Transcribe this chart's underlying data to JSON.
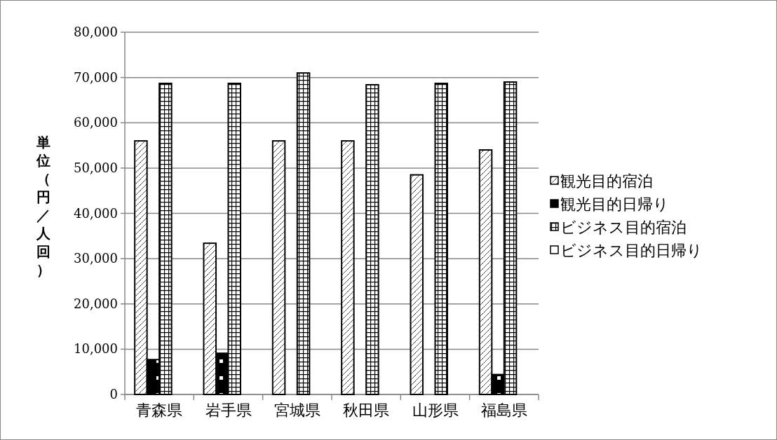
{
  "chart_data": {
    "type": "bar",
    "ylabel": "単位（円／人回）",
    "categories": [
      "青森県",
      "岩手県",
      "宮城県",
      "秋田県",
      "山形県",
      "福島県"
    ],
    "series": [
      {
        "name": "観光目的宿泊",
        "color": "#000000",
        "values": [
          56000,
          33400,
          56000,
          56000,
          48500,
          54000
        ]
      },
      {
        "name": "観光目的日帰り",
        "color": "#000000",
        "values": [
          7700,
          9100,
          null,
          null,
          null,
          4400
        ]
      },
      {
        "name": "ビジネス目的宿泊",
        "color": "#000000",
        "values": [
          68700,
          68700,
          71000,
          68400,
          68700,
          69000
        ]
      },
      {
        "name": "ビジネス目的日帰り",
        "color": "#ffffff",
        "values": [
          null,
          null,
          null,
          null,
          null,
          null
        ]
      }
    ],
    "ylim": [
      0,
      80000
    ],
    "yticks": [
      {
        "value": 0,
        "label": "0"
      },
      {
        "value": 10000,
        "label": "10,000"
      },
      {
        "value": 20000,
        "label": "20,000"
      },
      {
        "value": 30000,
        "label": "30,000"
      },
      {
        "value": 40000,
        "label": "40,000"
      },
      {
        "value": 50000,
        "label": "50,000"
      },
      {
        "value": 60000,
        "label": "60,000"
      },
      {
        "value": 70000,
        "label": "70,000"
      },
      {
        "value": 80000,
        "label": "80,000"
      }
    ],
    "grid": "y",
    "legend": "right"
  }
}
